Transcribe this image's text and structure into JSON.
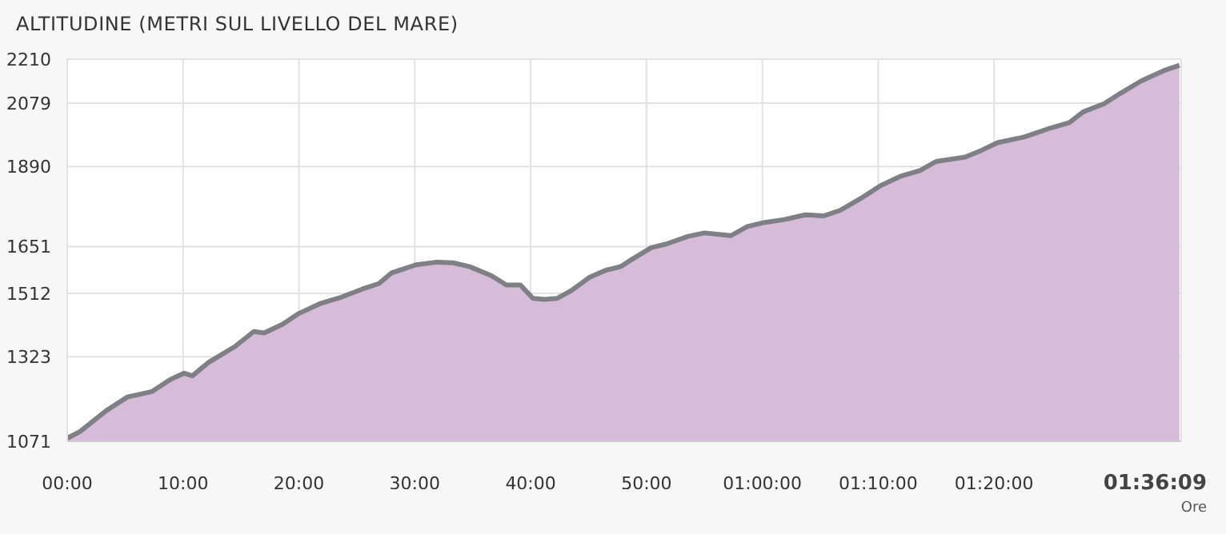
{
  "chart_data": {
    "type": "area",
    "title": "ALTITUDINE (METRI SUL LIVELLO DEL MARE)",
    "x": [
      0,
      1.1,
      3.4,
      5.2,
      7.3,
      8.9,
      10.1,
      10.8,
      12.2,
      14.5,
      16.1,
      17.0,
      18.6,
      20.0,
      21.8,
      23.7,
      25.5,
      26.9,
      28.0,
      30.1,
      31.9,
      33.3,
      34.7,
      36.6,
      37.9,
      39.1,
      40.2,
      41.2,
      42.3,
      43.5,
      45.1,
      46.5,
      47.8,
      48.5,
      50.4,
      51.7,
      53.6,
      55.0,
      57.3,
      58.7,
      60.0,
      61.9,
      63.7,
      65.3,
      66.7,
      68.5,
      70.2,
      72.0,
      73.6,
      75.0,
      77.5,
      78.9,
      80.3,
      82.6,
      84.9,
      86.5,
      87.7,
      89.5,
      90.9,
      92.7,
      94.6,
      96.0
    ],
    "series": [
      {
        "color": "#d6bcd8",
        "values": [
          1080,
          1100,
          1163,
          1203,
          1219,
          1255,
          1274,
          1266,
          1306,
          1354,
          1398,
          1394,
          1420,
          1452,
          1481,
          1501,
          1525,
          1541,
          1573,
          1597,
          1605,
          1603,
          1592,
          1565,
          1537,
          1537,
          1497,
          1494,
          1497,
          1520,
          1560,
          1581,
          1592,
          1608,
          1648,
          1659,
          1682,
          1692,
          1684,
          1711,
          1722,
          1732,
          1746,
          1743,
          1759,
          1795,
          1833,
          1862,
          1878,
          1905,
          1918,
          1938,
          1961,
          1978,
          2005,
          2021,
          2053,
          2077,
          2108,
          2145,
          2175,
          2192
        ]
      }
    ],
    "xlim": [
      0,
      96.15
    ],
    "xticks": [
      {
        "value": 0,
        "label": "00:00"
      },
      {
        "value": 10,
        "label": "10:00"
      },
      {
        "value": 20,
        "label": "20:00"
      },
      {
        "value": 30,
        "label": "30:00"
      },
      {
        "value": 40,
        "label": "40:00"
      },
      {
        "value": 50,
        "label": "50:00"
      },
      {
        "value": 60,
        "label": "01:00:00"
      },
      {
        "value": 70,
        "label": "01:10:00"
      },
      {
        "value": 80,
        "label": "01:20:00"
      }
    ],
    "ylim": [
      1071,
      2210
    ],
    "yticks": [
      1071,
      1323,
      1512,
      1651,
      1890,
      2079,
      2210
    ],
    "grid": true,
    "legend": false,
    "annotations": [
      "01:36:09",
      "Ore"
    ]
  }
}
